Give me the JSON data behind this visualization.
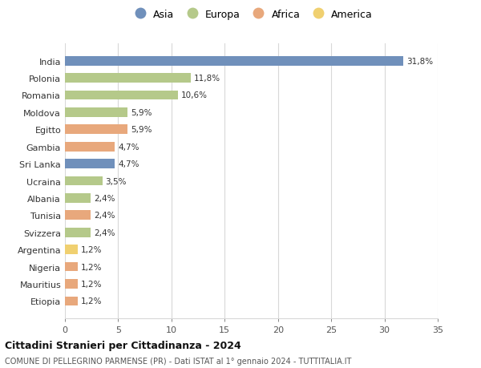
{
  "countries": [
    "India",
    "Polonia",
    "Romania",
    "Moldova",
    "Egitto",
    "Gambia",
    "Sri Lanka",
    "Ucraina",
    "Albania",
    "Tunisia",
    "Svizzera",
    "Argentina",
    "Nigeria",
    "Mauritius",
    "Etiopia"
  ],
  "values": [
    31.8,
    11.8,
    10.6,
    5.9,
    5.9,
    4.7,
    4.7,
    3.5,
    2.4,
    2.4,
    2.4,
    1.2,
    1.2,
    1.2,
    1.2
  ],
  "labels": [
    "31,8%",
    "11,8%",
    "10,6%",
    "5,9%",
    "5,9%",
    "4,7%",
    "4,7%",
    "3,5%",
    "2,4%",
    "2,4%",
    "2,4%",
    "1,2%",
    "1,2%",
    "1,2%",
    "1,2%"
  ],
  "continents": [
    "Asia",
    "Europa",
    "Europa",
    "Europa",
    "Africa",
    "Africa",
    "Asia",
    "Europa",
    "Europa",
    "Africa",
    "Europa",
    "America",
    "Africa",
    "Africa",
    "Africa"
  ],
  "continent_colors": {
    "Asia": "#7090bb",
    "Europa": "#b5c98a",
    "Africa": "#e8a87c",
    "America": "#f0d070"
  },
  "legend_items": [
    "Asia",
    "Europa",
    "Africa",
    "America"
  ],
  "legend_colors": [
    "#7090bb",
    "#b5c98a",
    "#e8a87c",
    "#f0d070"
  ],
  "xlim": [
    0,
    35
  ],
  "xticks": [
    0,
    5,
    10,
    15,
    20,
    25,
    30,
    35
  ],
  "title": "Cittadini Stranieri per Cittadinanza - 2024",
  "subtitle": "COMUNE DI PELLEGRINO PARMENSE (PR) - Dati ISTAT al 1° gennaio 2024 - TUTTITALIA.IT",
  "background_color": "#ffffff",
  "grid_color": "#d8d8d8",
  "bar_height": 0.55
}
